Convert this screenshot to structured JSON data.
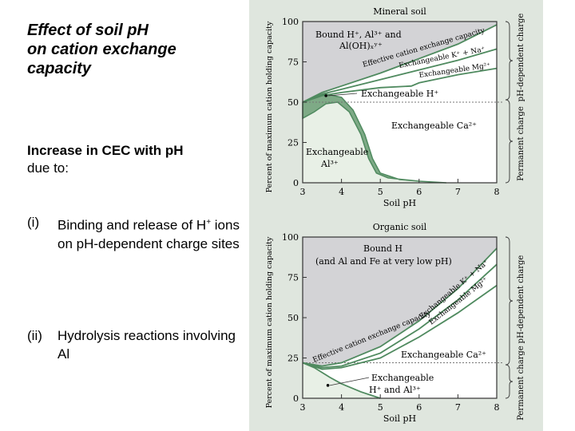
{
  "slide": {
    "title": "Effect of soil pH\non cation exchange\ncapacity",
    "subtitle_bold": "Increase in CEC with pH",
    "subtitle_rest": "due to:",
    "reasons": [
      {
        "num": "(i)",
        "pre": "Binding and release of H",
        "sup": "+",
        "post": " ions on pH-dependent charge sites"
      },
      {
        "num": "(ii)",
        "pre": "Hydrolysis reactions involving Al",
        "sup": "",
        "post": ""
      }
    ]
  },
  "colors": {
    "panel": "#dfe6de",
    "bound": "#d3d3d6",
    "line": "#4f8a5f",
    "band": "#7eaa86",
    "al_region": "#e8f0e6"
  },
  "chart_data": [
    {
      "type": "area",
      "title": "Mineral soil",
      "xlabel": "Soil pH",
      "ylabel": "Percent of maximum cation holding capacity",
      "xlim": [
        3,
        8
      ],
      "ylim": [
        0,
        100
      ],
      "xticks": [
        "3",
        "4",
        "5",
        "6",
        "7",
        "8"
      ],
      "yticks": [
        "0",
        "25",
        "50",
        "75",
        "100"
      ],
      "reference_line": 50,
      "series": [
        {
          "name": "Effective cation exchange capacity",
          "x": [
            3,
            3.5,
            4,
            5,
            6,
            7,
            8
          ],
          "y": [
            50,
            56,
            60,
            68,
            77,
            86,
            98
          ]
        },
        {
          "name": "Exchangeable K+ + Na+",
          "x": [
            3,
            3.5,
            4,
            5,
            6,
            7,
            8
          ],
          "y": [
            50,
            55,
            58,
            64,
            70,
            76,
            83
          ]
        },
        {
          "name": "Exchangeable Mg2+",
          "x": [
            3,
            3.5,
            4,
            5,
            5.8,
            6,
            7,
            8
          ],
          "y": [
            50,
            54,
            56,
            59,
            60,
            62,
            67,
            71
          ]
        },
        {
          "name": "Exchangeable H+",
          "x": [
            3,
            3.3,
            3.6,
            4,
            4.3,
            4.6,
            4.8,
            5,
            5.5,
            6,
            6.7
          ],
          "y": [
            50,
            53,
            55,
            53,
            45,
            30,
            15,
            6,
            2,
            1,
            0
          ]
        },
        {
          "name": "Exchangeable Al3+",
          "x": [
            3,
            3.3,
            3.6,
            3.9,
            4.2,
            4.5,
            4.7,
            4.9,
            5.2,
            6,
            6.7
          ],
          "y": [
            40,
            44,
            49,
            50,
            44,
            30,
            15,
            6,
            3,
            1,
            0
          ]
        }
      ],
      "labels": {
        "bound": "Bound H⁺, Al³⁺ and",
        "bound2": "Al(OH)ₓʸ⁺",
        "ecec": "Effective cation exchange capacity",
        "kna": "Exchangeable K⁺ + Na⁺",
        "mg": "Exchangeable Mg²⁺",
        "h": "Exchangeable H⁺",
        "ca": "Exchangeable Ca²⁺",
        "al1": "Exchangeable",
        "al2": "Al³⁺",
        "ph_dep": "pH-dependent charge",
        "perm": "Permanent charge"
      }
    },
    {
      "type": "area",
      "title": "Organic soil",
      "xlabel": "Soil pH",
      "ylabel": "Percent of maximum cation holding capacity",
      "xlim": [
        3,
        8
      ],
      "ylim": [
        0,
        100
      ],
      "xticks": [
        "3",
        "4",
        "5",
        "6",
        "7",
        "8"
      ],
      "yticks": [
        "0",
        "25",
        "50",
        "75",
        "100"
      ],
      "reference_line": 22,
      "series": [
        {
          "name": "Effective cation exchange capacity",
          "x": [
            3,
            3.5,
            4,
            5,
            6,
            7,
            8
          ],
          "y": [
            22,
            20,
            22,
            32,
            48,
            68,
            93
          ]
        },
        {
          "name": "Exchangeable K+ + Na+",
          "x": [
            3,
            3.5,
            4,
            5,
            6,
            7,
            8
          ],
          "y": [
            22,
            19,
            20,
            28,
            43,
            61,
            83
          ]
        },
        {
          "name": "Exchangeable Mg2+",
          "x": [
            3,
            3.5,
            4,
            5,
            6,
            7,
            8
          ],
          "y": [
            22,
            18,
            19,
            25,
            38,
            53,
            70
          ]
        },
        {
          "name": "Exchangeable H+ and Al3+",
          "x": [
            3,
            3.3,
            3.7,
            4,
            4.5,
            5
          ],
          "y": [
            22,
            19,
            13,
            9,
            4,
            0
          ]
        }
      ],
      "labels": {
        "bound": "Bound H",
        "bound2": "(and Al and Fe at very low pH)",
        "ecec": "Effective cation exchange capacity",
        "kna": "Exchangeable K⁺ + Na⁺",
        "mg": "Exchangeable Mg²⁺",
        "ca": "Exchangeable Ca²⁺",
        "hal1": "Exchangeable",
        "hal2": "H⁺ and Al³⁺",
        "ph_dep": "pH-dependent charge",
        "perm": "Permanent charge"
      }
    }
  ]
}
